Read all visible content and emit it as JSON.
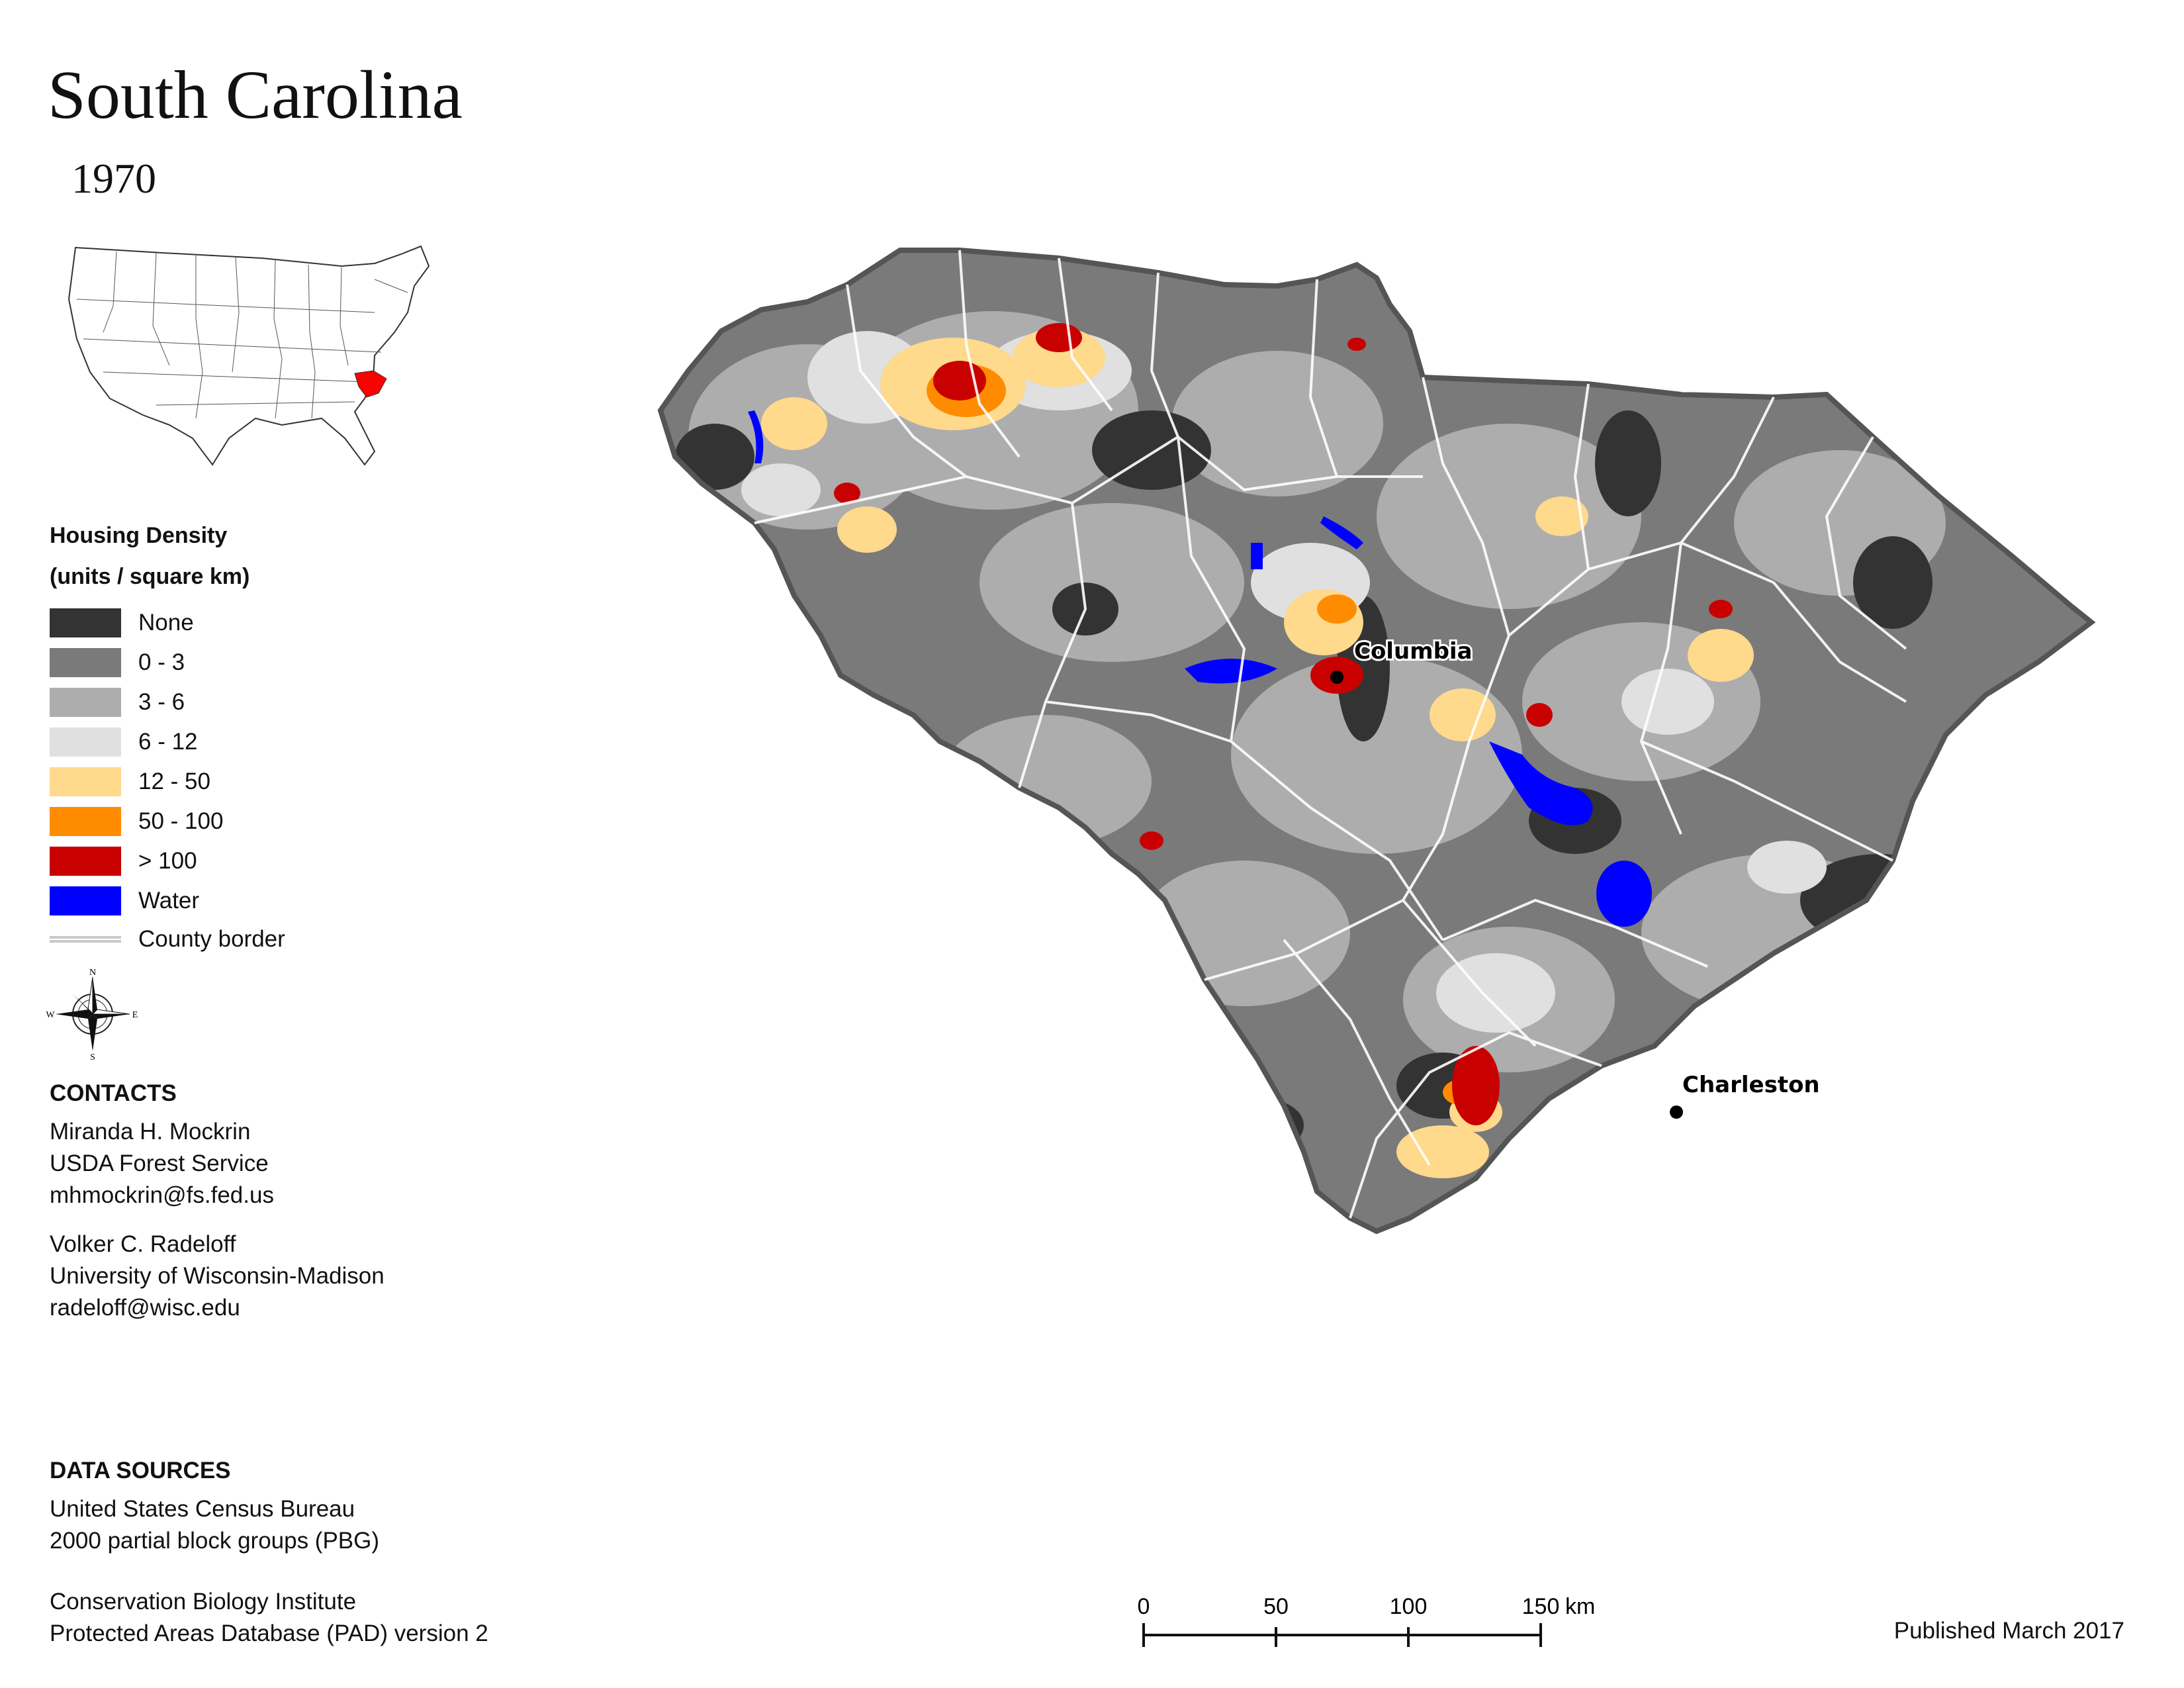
{
  "title": "South Carolina",
  "year": "1970",
  "legend": {
    "title_line1": "Housing Density",
    "title_line2": "(units / square km)",
    "items": [
      {
        "label": "None",
        "color": "#333333"
      },
      {
        "label": "0 - 3",
        "color": "#7a7a7a"
      },
      {
        "label": "3 - 6",
        "color": "#adadad"
      },
      {
        "label": "6 - 12",
        "color": "#e0e0e0"
      },
      {
        "label": "12 - 50",
        "color": "#ffd98c"
      },
      {
        "label": "50 - 100",
        "color": "#ff8c00"
      },
      {
        "label": "> 100",
        "color": "#c80000"
      },
      {
        "label": "Water",
        "color": "#0000ff"
      }
    ],
    "county_border_label": "County border"
  },
  "compass": {
    "n": "N",
    "s": "S",
    "e": "E",
    "w": "W"
  },
  "contacts": {
    "heading": "CONTACTS",
    "person1": {
      "name": "Miranda H. Mockrin",
      "org": "USDA Forest Service",
      "email": "mhmockrin@fs.fed.us"
    },
    "person2": {
      "name": "Volker C. Radeloff",
      "org": "University of Wisconsin-Madison",
      "email": "radeloff@wisc.edu"
    }
  },
  "data_sources": {
    "heading": "DATA SOURCES",
    "source1_line1": "United States Census Bureau",
    "source1_line2": "2000 partial block groups (PBG)",
    "source2_line1": "Conservation Biology Institute",
    "source2_line2": "Protected Areas Database (PAD) version 2"
  },
  "cities": {
    "columbia": "Columbia",
    "charleston": "Charleston"
  },
  "scale": {
    "ticks": [
      "0",
      "50",
      "100",
      "150"
    ],
    "unit": "km"
  },
  "published": "Published March 2017"
}
